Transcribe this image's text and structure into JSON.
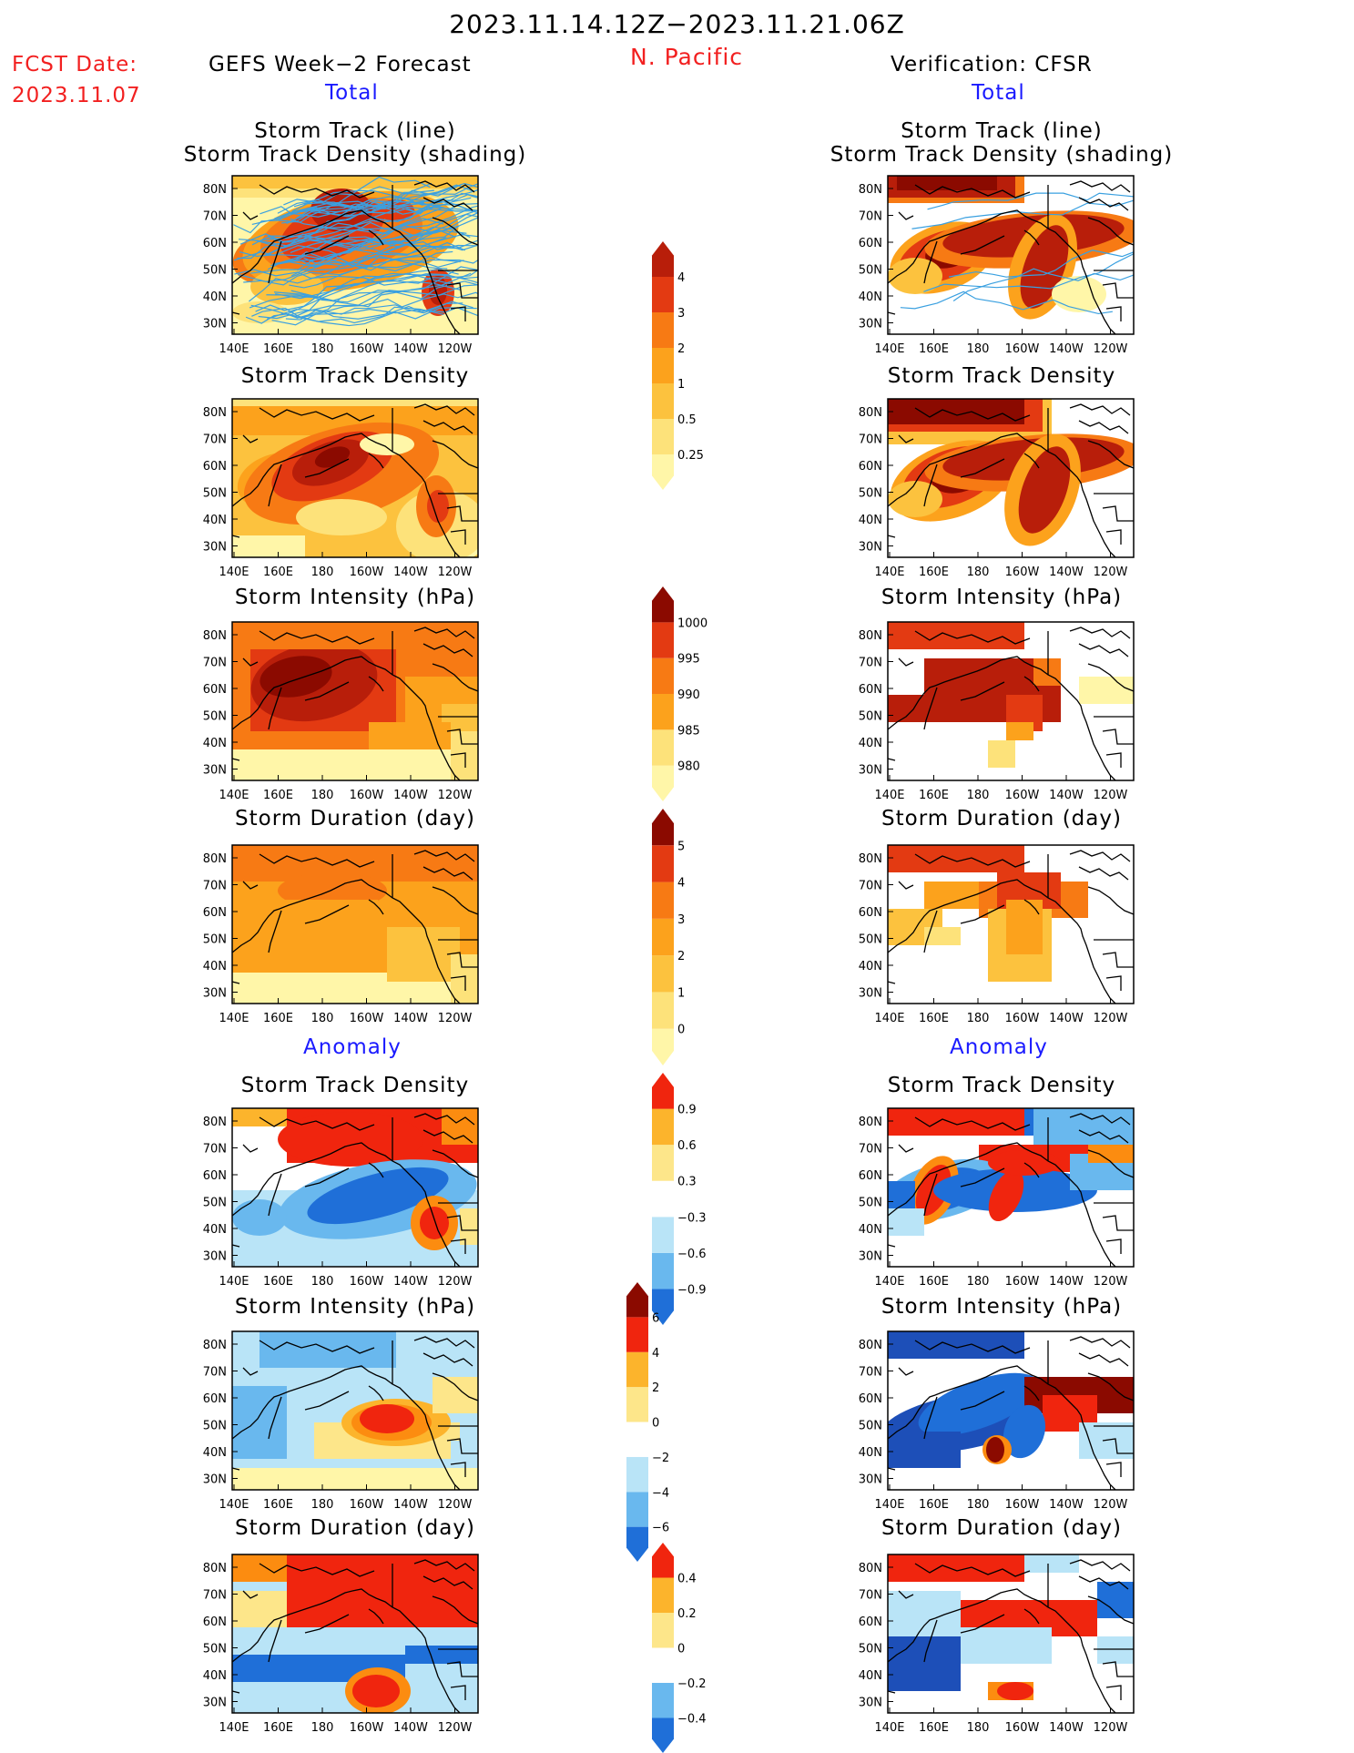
{
  "header": {
    "date_range": "2023.11.14.12Z−2023.11.21.06Z",
    "region": "N. Pacific",
    "fcst_label": "FCST Date:",
    "fcst_date": "2023.11.07",
    "left_title": "GEFS Week−2 Forecast",
    "right_title": "Verification: CFSR",
    "total_label": "Total",
    "anomaly_label": "Anomaly"
  },
  "panel_titles": {
    "track_line": "Storm Track (line)",
    "track_density_shading": "Storm Track Density (shading)",
    "track_density": "Storm Track Density",
    "intensity": "Storm Intensity (hPa)",
    "duration": "Storm Duration (day)"
  },
  "axes": {
    "lat_ticks": [
      "80N",
      "70N",
      "60N",
      "50N",
      "40N",
      "30N"
    ],
    "lon_ticks": [
      "140E",
      "160E",
      "180",
      "160W",
      "140W",
      "120W"
    ]
  },
  "colors": {
    "c1": "#fff6a8",
    "c2": "#fde27a",
    "c3": "#fcc23e",
    "c4": "#fca21c",
    "c5": "#f77a14",
    "c6": "#e33a12",
    "c7": "#b81e0a",
    "c8": "#8b0a00",
    "a_red": "#f0250e",
    "a_or": "#fc8c10",
    "a_or2": "#fcb42c",
    "a_yel": "#fde68a",
    "a_lb": "#b9e4f7",
    "a_mb": "#69b8ee",
    "a_db": "#1f6fd8",
    "a_ddb": "#1d4fb8",
    "track_line": "#3aa0e0"
  },
  "colorbars": [
    {
      "id": "density_total",
      "labels": [
        "4",
        "3",
        "2",
        "1",
        "0.5",
        "0.25"
      ]
    },
    {
      "id": "intensity_total",
      "labels": [
        "1000",
        "995",
        "990",
        "985",
        "980"
      ]
    },
    {
      "id": "duration_total",
      "labels": [
        "5",
        "4",
        "3",
        "2",
        "1",
        "0"
      ]
    },
    {
      "id": "density_anom",
      "labels": [
        "0.9",
        "0.6",
        "0.3",
        "−0.3",
        "−0.6",
        "−0.9"
      ]
    },
    {
      "id": "intensity_anom",
      "labels": [
        "6",
        "4",
        "2",
        "0",
        "−2",
        "−4",
        "−6"
      ]
    },
    {
      "id": "duration_anom",
      "labels": [
        "0.4",
        "0.2",
        "0",
        "−0.2",
        "−0.4"
      ]
    }
  ]
}
